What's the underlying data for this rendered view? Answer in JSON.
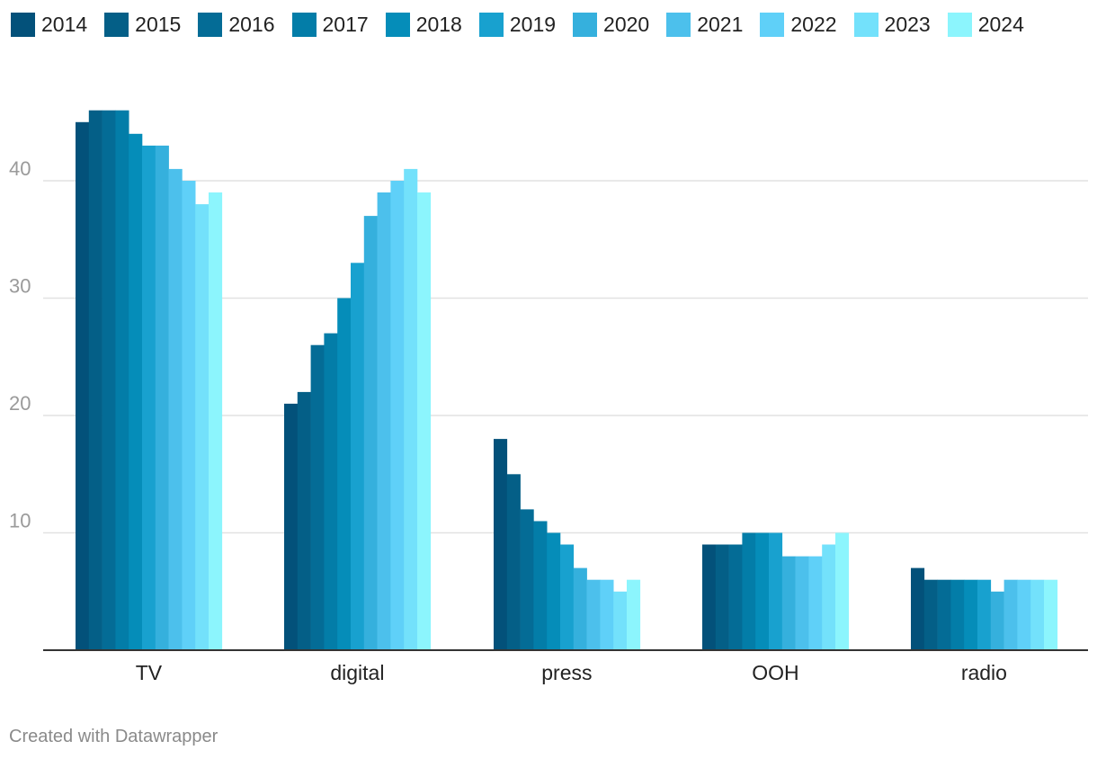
{
  "chart_data": {
    "type": "bar",
    "categories": [
      "TV",
      "digital",
      "press",
      "OOH",
      "radio"
    ],
    "series": [
      {
        "name": "2014",
        "color": "#03517a",
        "values": [
          45,
          21,
          18,
          9,
          7
        ]
      },
      {
        "name": "2015",
        "color": "#045f87",
        "values": [
          46,
          22,
          15,
          9,
          6
        ]
      },
      {
        "name": "2016",
        "color": "#046c96",
        "values": [
          46,
          26,
          12,
          9,
          6
        ]
      },
      {
        "name": "2017",
        "color": "#037da8",
        "values": [
          46,
          27,
          11,
          10,
          6
        ]
      },
      {
        "name": "2018",
        "color": "#058db9",
        "values": [
          44,
          30,
          10,
          10,
          6
        ]
      },
      {
        "name": "2019",
        "color": "#18a1cf",
        "values": [
          43,
          33,
          9,
          10,
          6
        ]
      },
      {
        "name": "2020",
        "color": "#35b0dd",
        "values": [
          43,
          37,
          7,
          8,
          5
        ]
      },
      {
        "name": "2021",
        "color": "#4cc0ec",
        "values": [
          41,
          39,
          6,
          8,
          6
        ]
      },
      {
        "name": "2022",
        "color": "#5fd0f8",
        "values": [
          40,
          40,
          6,
          8,
          6
        ]
      },
      {
        "name": "2023",
        "color": "#73e1fb",
        "values": [
          38,
          41,
          5,
          9,
          6
        ]
      },
      {
        "name": "2024",
        "color": "#8cf5fd",
        "values": [
          39,
          39,
          6,
          10,
          6
        ]
      }
    ],
    "y_ticks": [
      "10",
      "20",
      "30",
      "40"
    ],
    "ylim": [
      0,
      46
    ],
    "grid": true,
    "legend_position": "top-left"
  },
  "footer": {
    "credit": "Created with Datawrapper"
  }
}
